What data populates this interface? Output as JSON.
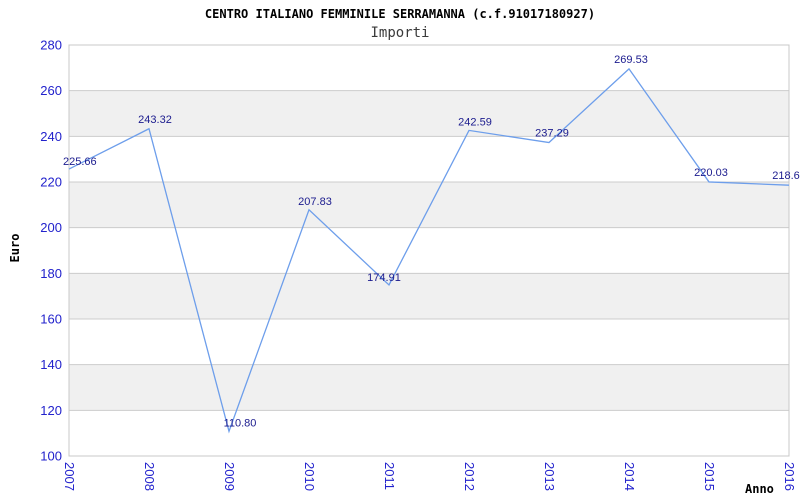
{
  "page": {
    "background": "#ffffff"
  },
  "chart_data": {
    "type": "line",
    "title": "CENTRO ITALIANO FEMMINILE SERRAMANNA (c.f.91017180927)",
    "subtitle": "Importi",
    "xlabel": "Anno",
    "ylabel": "Euro",
    "categories": [
      "2007",
      "2008",
      "2009",
      "2010",
      "2011",
      "2012",
      "2013",
      "2014",
      "2015",
      "2016"
    ],
    "series": [
      {
        "name": "Importi",
        "values": [
          225.66,
          243.32,
          110.8,
          207.83,
          174.91,
          242.59,
          237.29,
          269.53,
          220.03,
          218.6
        ]
      }
    ],
    "point_labels": [
      "225.66",
      "243.32",
      "110.80",
      "207.83",
      "174.91",
      "242.59",
      "237.29",
      "269.53",
      "220.03",
      "218.6"
    ],
    "ylim": [
      100,
      280
    ],
    "ytick_step": 20,
    "ytick_labels": [
      "100",
      "120",
      "140",
      "160",
      "180",
      "200",
      "220",
      "240",
      "260",
      "280"
    ],
    "grid": "horizontal-bands",
    "legend": "none",
    "colors": {
      "line": "#6d9eeb",
      "tick_label": "#2222cc",
      "data_label": "#1b1b8e",
      "band_even": "#ffffff",
      "band_odd": "#f0f0f0",
      "grid_line": "#cccccc",
      "plot_border": "#c8c8c8"
    },
    "label_layout": {
      "dx": [
        -6,
        6,
        11,
        6,
        -5,
        6,
        3,
        2,
        2,
        -3
      ],
      "dy": [
        -4,
        -6,
        -5,
        -5,
        -4,
        -5,
        -6,
        -6,
        -6,
        -6
      ],
      "anchor": [
        "start",
        "middle",
        "middle",
        "middle",
        "middle",
        "middle",
        "middle",
        "middle",
        "middle",
        "middle"
      ]
    }
  }
}
